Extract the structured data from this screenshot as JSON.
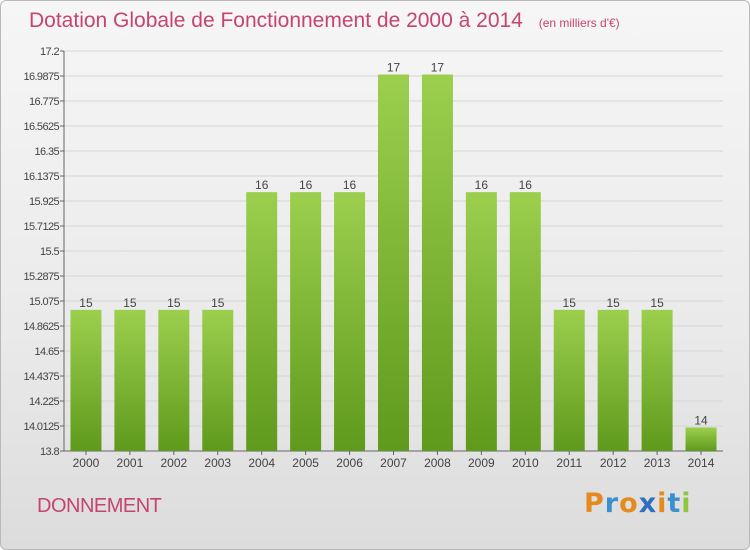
{
  "header": {
    "title": "Dotation Globale de Fonctionnement de 2000 à 2014",
    "units": "(en milliers d'€)"
  },
  "footer": {
    "commune": "DONNEMENT",
    "logo": "Proxiti"
  },
  "chart_data": {
    "type": "bar",
    "categories": [
      "2000",
      "2001",
      "2002",
      "2003",
      "2004",
      "2005",
      "2006",
      "2007",
      "2008",
      "2009",
      "2010",
      "2011",
      "2012",
      "2013",
      "2014"
    ],
    "values": [
      15,
      15,
      15,
      15,
      16,
      16,
      16,
      17,
      17,
      16,
      16,
      15,
      15,
      15,
      14
    ],
    "data_labels": [
      "15",
      "15",
      "15",
      "15",
      "16",
      "16",
      "16",
      "17",
      "17",
      "16",
      "16",
      "15",
      "15",
      "15",
      "14"
    ],
    "ylim": [
      13.8,
      17.2
    ],
    "yticks": [
      "17.2",
      "16.9875",
      "16.775",
      "16.5625",
      "16.35",
      "16.1375",
      "15.925",
      "15.7125",
      "15.5",
      "15.2875",
      "15.075",
      "14.8625",
      "14.65",
      "14.4375",
      "14.225",
      "14.0125",
      "13.8"
    ],
    "ytick_values": [
      17.2,
      16.9875,
      16.775,
      16.5625,
      16.35,
      16.1375,
      15.925,
      15.7125,
      15.5,
      15.2875,
      15.075,
      14.8625,
      14.65,
      14.4375,
      14.225,
      14.0125,
      13.8
    ],
    "grid": true,
    "colors": {
      "bar_top": "#9ccf4e",
      "bar_bottom": "#5f9a1c",
      "grid": "#d6d6d6",
      "title": "#c6446e"
    }
  }
}
